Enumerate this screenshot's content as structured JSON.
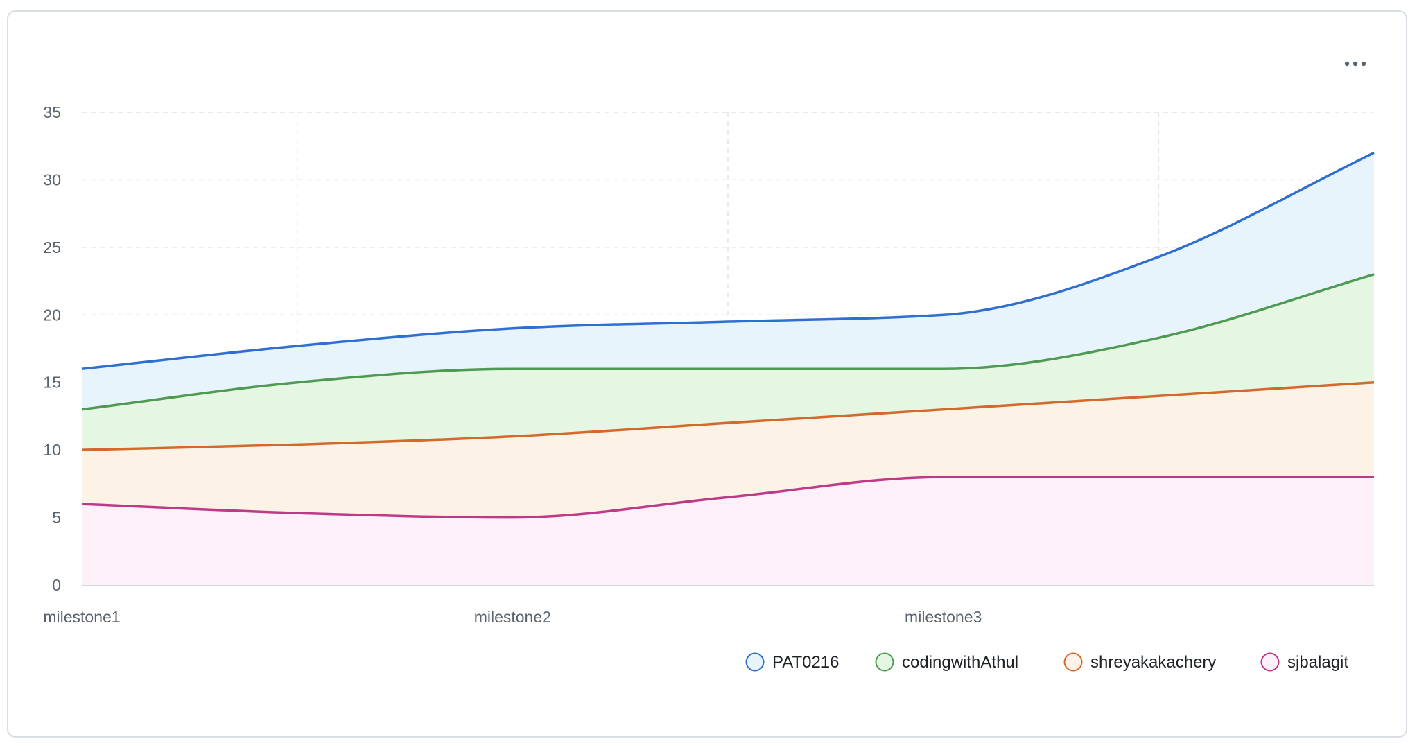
{
  "menu": {
    "icon": "kebab-horizontal-icon",
    "label": "..."
  },
  "chart_data": {
    "type": "area",
    "stacked": true,
    "curve": "smooth",
    "categories": [
      "milestone1",
      "",
      "milestone2",
      "",
      "milestone3",
      "",
      ""
    ],
    "x_tick_labels": [
      "milestone1",
      "milestone2",
      "milestone3"
    ],
    "ylim": [
      0,
      35
    ],
    "yticks": [
      0,
      5,
      10,
      15,
      20,
      25,
      30,
      35
    ],
    "grid": true,
    "legend_position": "bottom-right",
    "series": [
      {
        "name": "sjbalagit",
        "color": "#bf3989",
        "fill": "#fdf0f8",
        "values": [
          6,
          5.33,
          5,
          6.5,
          8,
          8,
          8
        ]
      },
      {
        "name": "shreyakakachery",
        "color": "#d4692b",
        "fill": "#fcf3e6",
        "values": [
          4,
          5.07,
          6,
          5.5,
          5,
          6,
          7
        ]
      },
      {
        "name": "codingwithAthul",
        "color": "#4e9a53",
        "fill": "#e5f6e2",
        "values": [
          3,
          4.6,
          5,
          4,
          3,
          4.3,
          8
        ]
      },
      {
        "name": "PAT0216",
        "color": "#2f6fd0",
        "fill": "#e8f4fc",
        "values": [
          3,
          2.7,
          3,
          3.5,
          4,
          6,
          9
        ]
      }
    ]
  }
}
